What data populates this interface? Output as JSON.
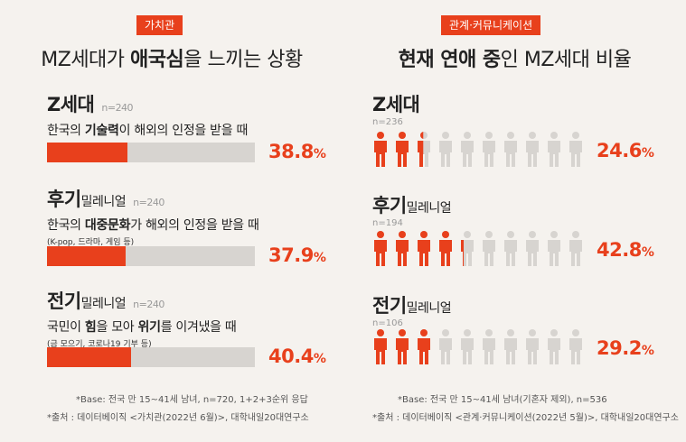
{
  "left": {
    "tag": "가치관",
    "title_pre": "MZ세대가 ",
    "title_bold": "애국심",
    "title_post": "을 느끼는 상황",
    "groups": [
      {
        "name": "Z세대",
        "suffix": "",
        "n": "n=240",
        "desc_pre": "한국의 ",
        "desc_bold": "기술력",
        "desc_mid": "이 해외의 인정을 받을 때",
        "desc_bold2": "",
        "desc_post": "",
        "note": ""
      },
      {
        "name": "후기",
        "suffix": "밀레니얼",
        "n": "n=240",
        "desc_pre": "한국의 ",
        "desc_bold": "대중문화",
        "desc_mid": "가 해외의 인정을 받을 때",
        "desc_bold2": "",
        "desc_post": "",
        "note": "(K-pop, 드라마, 게임 등)"
      },
      {
        "name": "전기",
        "suffix": "밀레니얼",
        "n": "n=240",
        "desc_pre": "국민이 ",
        "desc_bold": "힘",
        "desc_mid": "을 모아 ",
        "desc_bold2": "위기",
        "desc_post": "를 이겨냈을 때",
        "note": "(금 모으기, 코로나19 기부 등)"
      }
    ],
    "foot1": "*Base: 전국 만 15~41세 남녀, n=720, 1+2+3순위 응답",
    "foot2": "*출처 : 데이터베이직 <가치관(2022년 6월)>, 대학내일20대연구소"
  },
  "right": {
    "tag": "관계·커뮤니케이션",
    "title_bold1": "현재 연애 중",
    "title_post": "인 MZ세대 비율",
    "groups": [
      {
        "name": "Z세대",
        "suffix": "",
        "n": "n=236"
      },
      {
        "name": "후기",
        "suffix": "밀레니얼",
        "n": "n=194"
      },
      {
        "name": "전기",
        "suffix": "밀레니얼",
        "n": "n=106"
      }
    ],
    "foot1": "*Base: 전국 만 15~41세 남녀(기혼자 제외), n=536",
    "foot2": "*출처 : 데이터베이직 <관계·커뮤니케이션(2022년 5월)>, 대학내일20대연구소"
  },
  "colors": {
    "accent": "#e8401c",
    "empty": "#d7d4d0",
    "background": "#f5f2ee"
  },
  "chart_data": [
    {
      "type": "bar",
      "title": "MZ세대가 애국심을 느끼는 상황",
      "categories": [
        "Z세대",
        "후기밀레니얼",
        "전기밀레니얼"
      ],
      "values": [
        38.8,
        37.9,
        40.4
      ],
      "value_labels": [
        "38.8",
        "37.9",
        "40.4"
      ],
      "unit": "%",
      "ylim": [
        0,
        100
      ]
    },
    {
      "type": "bar",
      "title": "현재 연애 중인 MZ세대 비율",
      "categories": [
        "Z세대",
        "후기밀레니얼",
        "전기밀레니얼"
      ],
      "values": [
        24.6,
        42.8,
        29.2
      ],
      "value_labels": [
        "24.6",
        "42.8",
        "29.2"
      ],
      "unit": "%",
      "ylim": [
        0,
        100
      ]
    }
  ]
}
